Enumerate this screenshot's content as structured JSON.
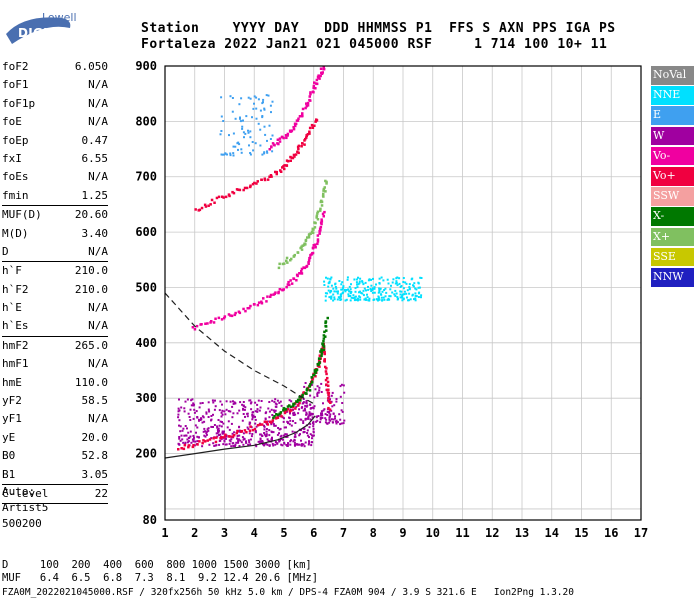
{
  "logo": {
    "top": "Lowell",
    "bottom": "DIGISONDE"
  },
  "header": {
    "line1": "Station    YYYY DAY   DDD HHMMSS P1  FFS S AXN PPS IGA PS",
    "line2": "Fortaleza 2022 Jan21 021 045000 RSF     1 714 100 10+ 11"
  },
  "params": [
    {
      "k": "foF2",
      "v": "6.050",
      "sep": false
    },
    {
      "k": "foF1",
      "v": "N/A",
      "sep": false
    },
    {
      "k": "foF1p",
      "v": "N/A",
      "sep": false
    },
    {
      "k": "foE",
      "v": "N/A",
      "sep": false
    },
    {
      "k": "foEp",
      "v": "0.47",
      "sep": false
    },
    {
      "k": "fxI",
      "v": "6.55",
      "sep": false
    },
    {
      "k": "foEs",
      "v": "N/A",
      "sep": false
    },
    {
      "k": "fmin",
      "v": "1.25",
      "sep": true
    },
    {
      "k": "MUF(D)",
      "v": "20.60",
      "sep": false
    },
    {
      "k": "M(D)",
      "v": "3.40",
      "sep": false
    },
    {
      "k": "D",
      "v": "N/A",
      "sep": true
    },
    {
      "k": "h`F",
      "v": "210.0",
      "sep": false
    },
    {
      "k": "h`F2",
      "v": "210.0",
      "sep": false
    },
    {
      "k": "h`E",
      "v": "N/A",
      "sep": false
    },
    {
      "k": "h`Es",
      "v": "N/A",
      "sep": true
    },
    {
      "k": "hmF2",
      "v": "265.0",
      "sep": false
    },
    {
      "k": "hmF1",
      "v": "N/A",
      "sep": false
    },
    {
      "k": "hmE",
      "v": "110.0",
      "sep": false
    },
    {
      "k": "yF2",
      "v": "58.5",
      "sep": false
    },
    {
      "k": "yF1",
      "v": "N/A",
      "sep": false
    },
    {
      "k": "yE",
      "v": "20.0",
      "sep": false
    },
    {
      "k": "B0",
      "v": "52.8",
      "sep": false
    },
    {
      "k": "B1",
      "v": "3.05",
      "sep": true
    },
    {
      "k": "C-level",
      "v": "22",
      "sep": true
    }
  ],
  "auto_block": [
    "Auto:",
    "Artist5",
    "500200"
  ],
  "footer": {
    "d_row": "D     100  200  400  600  800 1000 1500 3000 [km]",
    "muf_row": "MUF   6.4  6.5  6.8  7.3  8.1  9.2 12.4 20.6 [MHz]",
    "info": "FZA0M_2022021045000.RSF / 320fx256h 50 kHz 5.0 km / DPS-4 FZA0M 904 / 3.9 S 321.6 E   Ion2Png 1.3.20"
  },
  "legend": [
    {
      "label": "NoVal",
      "color": "#888888"
    },
    {
      "label": "NNE",
      "color": "#00e0ff"
    },
    {
      "label": "E",
      "color": "#3fa0f0"
    },
    {
      "label": "W",
      "color": "#a000a0"
    },
    {
      "label": "Vo-",
      "color": "#f000a0"
    },
    {
      "label": "Vo+",
      "color": "#f00040"
    },
    {
      "label": "SSW",
      "color": "#f4a0a0"
    },
    {
      "label": "X-",
      "color": "#007800"
    },
    {
      "label": "X+",
      "color": "#80c060"
    },
    {
      "label": "SSE",
      "color": "#c8c800"
    },
    {
      "label": "NNW",
      "color": "#2020c0"
    }
  ],
  "chart_data": {
    "type": "scatter",
    "title": "",
    "xlabel": "",
    "ylabel": "",
    "xlim": [
      1,
      17
    ],
    "ylim": [
      80,
      900
    ],
    "x_ticks": [
      1,
      2,
      3,
      4,
      5,
      6,
      7,
      8,
      9,
      10,
      11,
      12,
      13,
      14,
      15,
      16,
      17
    ],
    "y_ticks": [
      80,
      200,
      300,
      400,
      500,
      600,
      700,
      800,
      900
    ],
    "grid": true,
    "series": [
      {
        "name": "W",
        "color": "#a000a0",
        "kind": "cloud",
        "cloud": {
          "x": [
            1.4,
            6.0
          ],
          "y": [
            215,
            300
          ],
          "n": 520
        }
      },
      {
        "name": "W",
        "color": "#a000a0",
        "kind": "cloud",
        "cloud": {
          "x": [
            5.6,
            7.0
          ],
          "y": [
            255,
            330
          ],
          "n": 120
        }
      },
      {
        "name": "NNE",
        "color": "#00e0ff",
        "kind": "cloud",
        "cloud": {
          "x": [
            6.3,
            9.6
          ],
          "y": [
            478,
            520
          ],
          "n": 260
        }
      },
      {
        "name": "E",
        "color": "#3fa0f0",
        "kind": "cloud",
        "cloud": {
          "x": [
            2.8,
            4.6
          ],
          "y": [
            740,
            850
          ],
          "n": 90
        }
      },
      {
        "name": "Vo+",
        "color": "#f00040",
        "kind": "trace",
        "trace": {
          "x": [
            1.4,
            2.5,
            3.5,
            4.5,
            5.3,
            5.8,
            6.1,
            6.3,
            6.4,
            6.5
          ],
          "y": [
            212,
            225,
            240,
            260,
            285,
            320,
            360,
            400,
            330,
            280
          ]
        }
      },
      {
        "name": "Vo-",
        "color": "#f000a0",
        "kind": "trace",
        "trace": {
          "x": [
            1.9,
            3.0,
            4.0,
            4.8,
            5.4,
            5.8,
            6.1,
            6.3
          ],
          "y": [
            428,
            450,
            470,
            495,
            520,
            550,
            590,
            640
          ]
        }
      },
      {
        "name": "Vo+",
        "color": "#f00040",
        "kind": "trace",
        "trace": {
          "x": [
            2.0,
            3.0,
            4.0,
            4.8,
            5.3,
            5.7,
            6.1
          ],
          "y": [
            642,
            668,
            690,
            712,
            740,
            770,
            810
          ]
        }
      },
      {
        "name": "Vo-",
        "color": "#f000a0",
        "kind": "trace",
        "trace": {
          "x": [
            4.5,
            5.0,
            5.4,
            5.8,
            6.1,
            6.3
          ],
          "y": [
            755,
            775,
            800,
            840,
            880,
            900
          ]
        }
      },
      {
        "name": "X-",
        "color": "#007800",
        "kind": "trace",
        "trace": {
          "x": [
            4.6,
            5.3,
            5.8,
            6.1,
            6.3,
            6.4
          ],
          "y": [
            270,
            290,
            320,
            360,
            400,
            450
          ]
        }
      },
      {
        "name": "X+",
        "color": "#80c060",
        "kind": "trace",
        "trace": {
          "x": [
            4.8,
            5.5,
            5.9,
            6.2,
            6.4
          ],
          "y": [
            540,
            570,
            600,
            650,
            700
          ]
        }
      }
    ],
    "profile_solid": {
      "x": [
        1,
        2,
        3,
        4,
        4.8,
        5.4,
        5.8,
        6.05
      ],
      "y": [
        192,
        200,
        208,
        215,
        225,
        238,
        252,
        268
      ]
    },
    "profile_dashed": {
      "x": [
        1,
        1.5,
        2,
        3,
        4,
        5,
        5.5,
        6
      ],
      "y": [
        490,
        460,
        430,
        385,
        350,
        322,
        305,
        290
      ]
    }
  }
}
